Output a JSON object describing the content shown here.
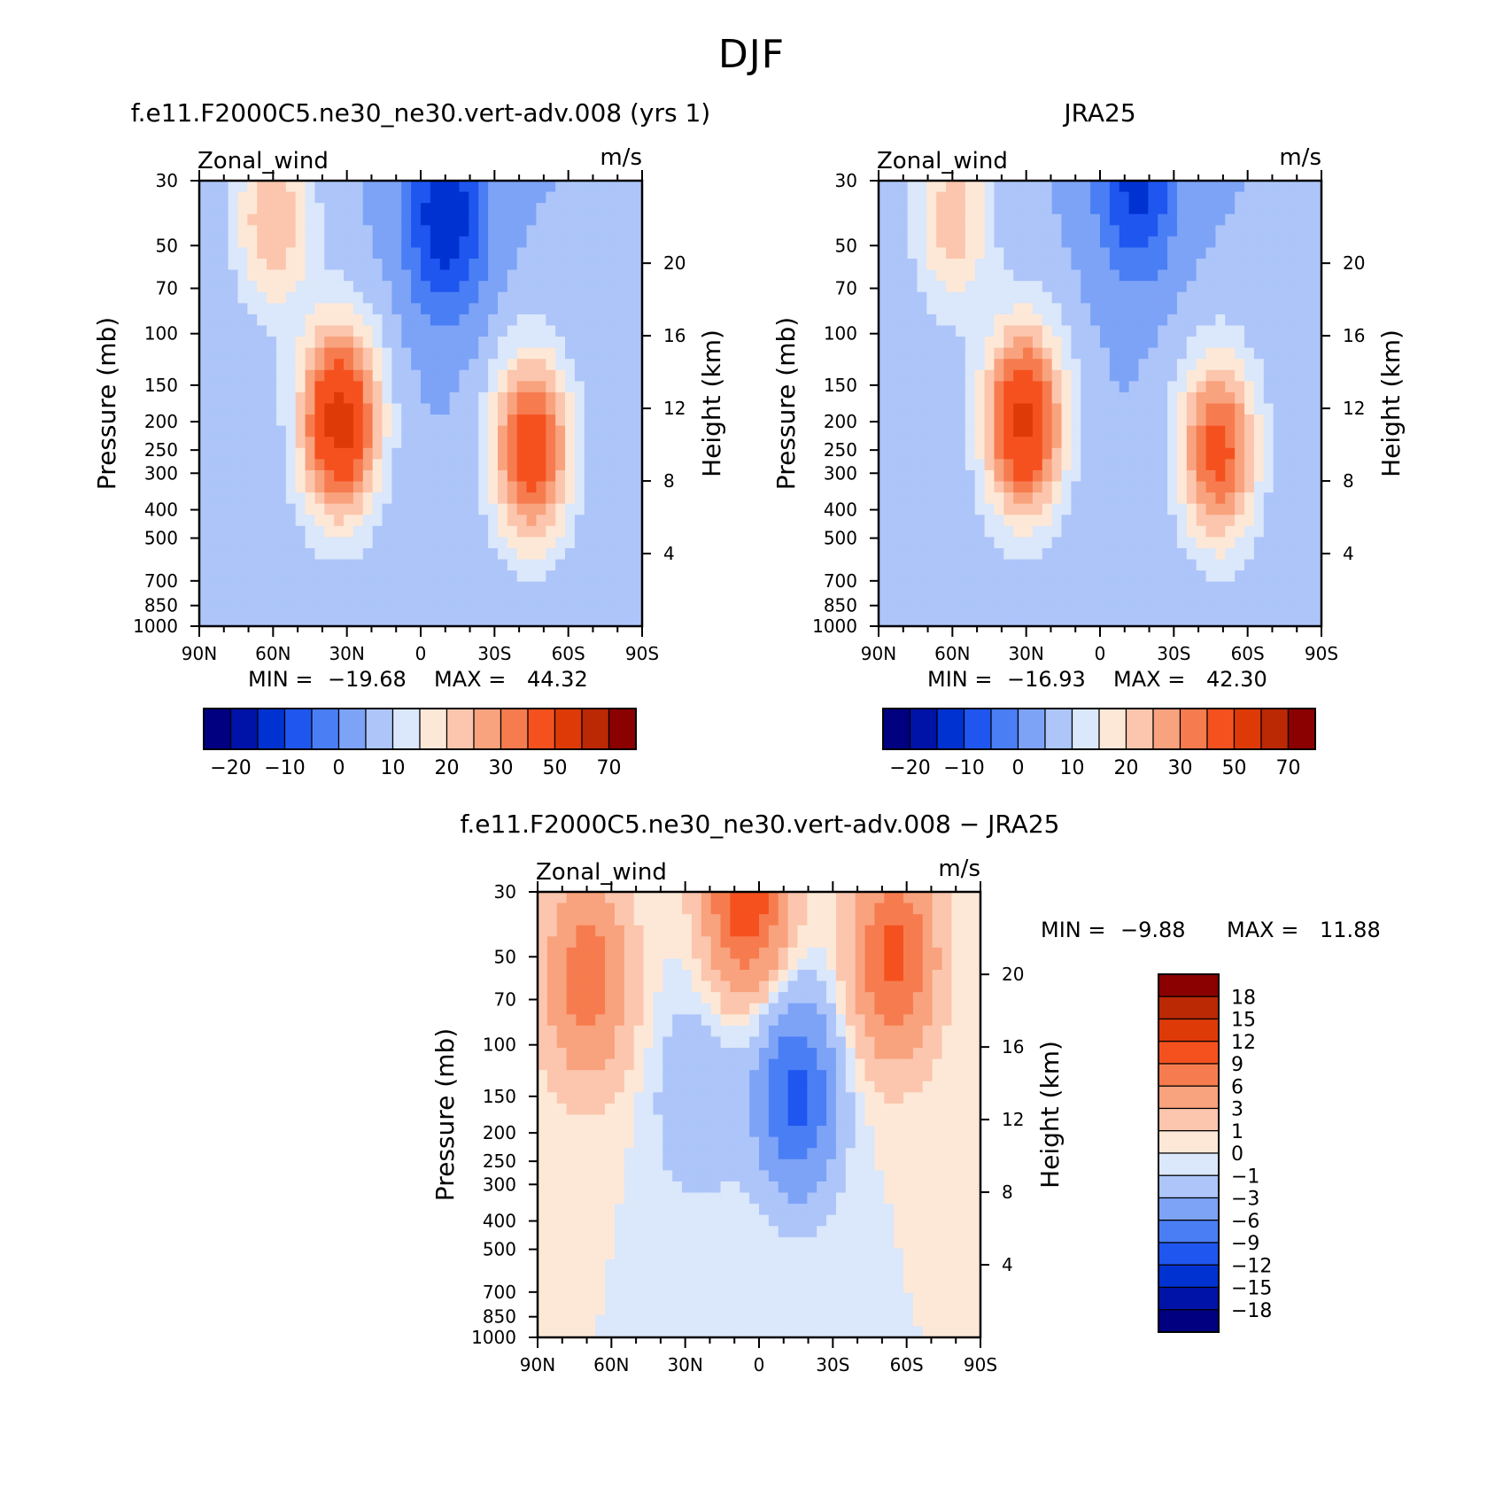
{
  "page": {
    "title": "DJF"
  },
  "chart_data": [
    {
      "type": "heatmap",
      "id": "model",
      "title": "f.e11.F2000C5.ne30_ne30.vert-adv.008 (yrs 1)",
      "variable": "Zonal_wind",
      "units": "m/s",
      "ylabel_left": "Pressure (mb)",
      "ylabel_right": "Height (km)",
      "x_ticks": [
        "90N",
        "60N",
        "30N",
        "0",
        "30S",
        "60S",
        "90S"
      ],
      "x_range": [
        90,
        -90
      ],
      "pressure_ticks": [
        30,
        50,
        70,
        100,
        150,
        200,
        250,
        300,
        400,
        500,
        700,
        850,
        1000
      ],
      "height_ticks": [
        20,
        16,
        12,
        8,
        4
      ],
      "min_label": "MIN =",
      "min_value": "−19.68",
      "max_label": "MAX =",
      "max_value": "44.32",
      "colorbar_labels": [
        "−20",
        "−10",
        "0",
        "10",
        "20",
        "30",
        "50",
        "70"
      ],
      "levels": [
        -25,
        -20,
        -15,
        -10,
        -5,
        0,
        5,
        10,
        15,
        20,
        25,
        30,
        40,
        50,
        60,
        70
      ],
      "centers": [
        {
          "lat": 33,
          "p": 200,
          "value": 44.3
        },
        {
          "lat": -45,
          "p": 250,
          "value": 36
        },
        {
          "lat": 60,
          "p": 40,
          "value": 20
        },
        {
          "lat": -10,
          "p": 40,
          "value": -19.7
        }
      ]
    },
    {
      "type": "heatmap",
      "id": "obs",
      "title": "JRA25",
      "variable": "Zonal_wind",
      "units": "m/s",
      "ylabel_left": "Pressure (mb)",
      "ylabel_right": "Height (km)",
      "x_ticks": [
        "90N",
        "60N",
        "30N",
        "0",
        "30S",
        "60S",
        "90S"
      ],
      "x_range": [
        90,
        -90
      ],
      "pressure_ticks": [
        30,
        50,
        70,
        100,
        150,
        200,
        250,
        300,
        400,
        500,
        700,
        850,
        1000
      ],
      "height_ticks": [
        20,
        16,
        12,
        8,
        4
      ],
      "min_label": "MIN =",
      "min_value": "−16.93",
      "max_label": "MAX =",
      "max_value": "42.30",
      "colorbar_labels": [
        "−20",
        "−10",
        "0",
        "10",
        "20",
        "30",
        "50",
        "70"
      ],
      "levels": [
        -25,
        -20,
        -15,
        -10,
        -5,
        0,
        5,
        10,
        15,
        20,
        25,
        30,
        40,
        50,
        60,
        70
      ],
      "centers": [
        {
          "lat": 31,
          "p": 200,
          "value": 42.3
        },
        {
          "lat": -48,
          "p": 250,
          "value": 33
        },
        {
          "lat": 60,
          "p": 40,
          "value": 18
        },
        {
          "lat": -15,
          "p": 30,
          "value": -16.9
        }
      ]
    },
    {
      "type": "heatmap",
      "id": "diff",
      "title": "f.e11.F2000C5.ne30_ne30.vert-adv.008 − JRA25",
      "variable": "Zonal_wind",
      "units": "m/s",
      "ylabel_left": "Pressure (mb)",
      "ylabel_right": "Height (km)",
      "x_ticks": [
        "90N",
        "60N",
        "30N",
        "0",
        "30S",
        "60S",
        "90S"
      ],
      "x_range": [
        90,
        -90
      ],
      "pressure_ticks": [
        30,
        50,
        70,
        100,
        150,
        200,
        250,
        300,
        400,
        500,
        700,
        850,
        1000
      ],
      "height_ticks": [
        20,
        16,
        12,
        8,
        4
      ],
      "min_label": "MIN =",
      "min_value": "−9.88",
      "max_label": "MAX =",
      "max_value": "11.88",
      "colorbar_labels": [
        "18",
        "15",
        "12",
        "9",
        "6",
        "3",
        "1",
        "0",
        "−1",
        "−3",
        "−6",
        "−9",
        "−12",
        "−15",
        "−18"
      ],
      "levels": [
        -18,
        -15,
        -12,
        -9,
        -6,
        -3,
        -1,
        0,
        1,
        3,
        6,
        9,
        12,
        15,
        18
      ],
      "centers": [
        {
          "lat": 70,
          "p": 60,
          "value": 8
        },
        {
          "lat": -55,
          "p": 50,
          "value": 10
        },
        {
          "lat": 5,
          "p": 30,
          "value": 11.9
        },
        {
          "lat": 25,
          "p": 150,
          "value": -3
        },
        {
          "lat": -15,
          "p": 150,
          "value": -9.9
        }
      ]
    }
  ],
  "palette": {
    "blue_red": [
      "#000080",
      "#0013a8",
      "#0032d2",
      "#1f56f0",
      "#4a7ef5",
      "#7da3f7",
      "#adc5f9",
      "#dbe7fa",
      "#fde8d7",
      "#fbc6ad",
      "#f9a27e",
      "#f67c4f",
      "#f5511f",
      "#de3a08",
      "#ba2804",
      "#8b0000"
    ]
  }
}
